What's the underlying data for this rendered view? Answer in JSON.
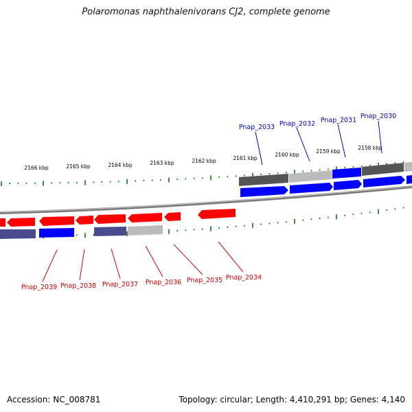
{
  "title": "Polaromonas naphthalenivorans CJ2, complete genome",
  "footer": {
    "accession": "Accession: NC_008781",
    "topology": "Topology: circular",
    "length": "Length: 4,410,291 bp",
    "genes": "Genes: 4,140"
  },
  "scale_labels": [
    "2166 kbp",
    "2165 kbp",
    "2164 kbp",
    "2163 kbp",
    "2162 kbp",
    "2161 kbp",
    "2160 kbp",
    "2159 kbp",
    "2158 kbp"
  ],
  "top_gene_labels": [
    "Pnap_2033",
    "Pnap_2032",
    "Pnap_2031",
    "Pnap_2030"
  ],
  "bottom_gene_labels": [
    "Pnap_2039",
    "Pnap_2038",
    "Pnap_2037",
    "Pnap_2036",
    "Pnap_2035",
    "Pnap_2034"
  ],
  "colors": {
    "forward_gene": "#0000ff",
    "reverse_gene": "#ff0000",
    "top_label": "#0000c8",
    "bottom_label": "#d00000",
    "tick": "#006400",
    "backbone": "#777777",
    "cog_dark": "#555555",
    "cog_light": "#bbbbbb",
    "cog_purple": "#4a4a8c"
  }
}
